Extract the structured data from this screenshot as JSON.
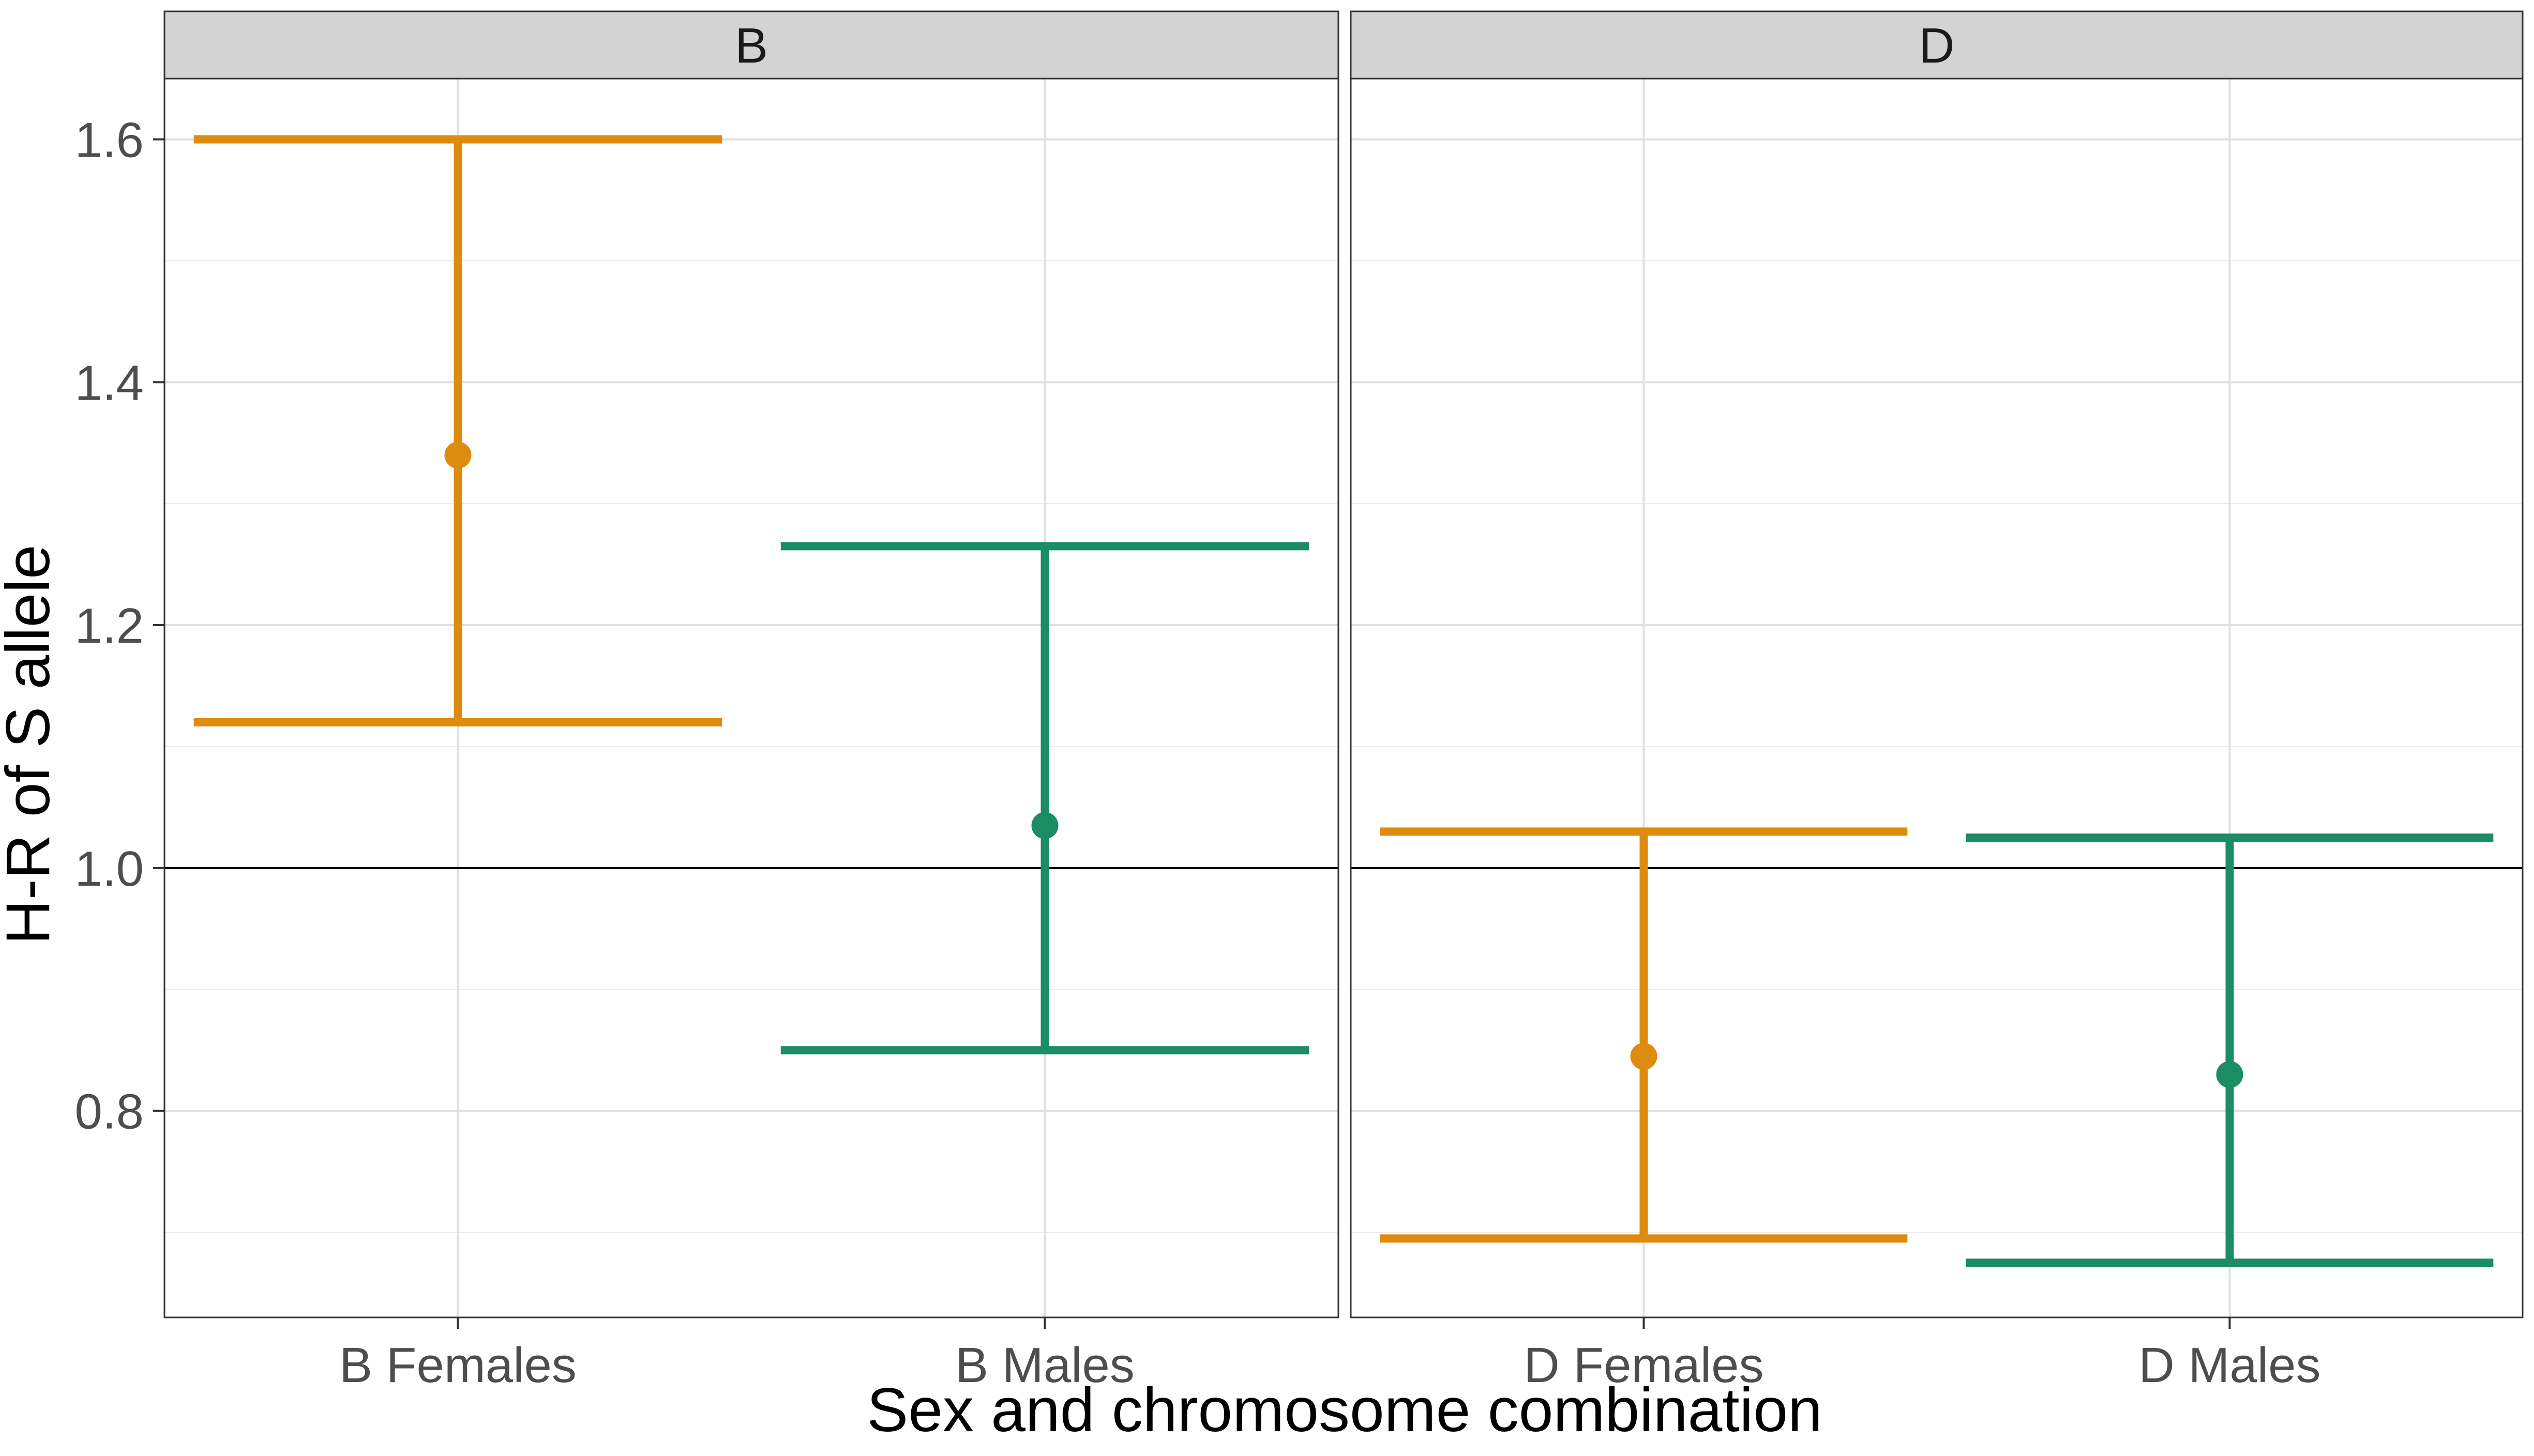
{
  "chart_data": {
    "type": "errorbar",
    "ylabel": "H-R of S allele",
    "xlabel": "Sex and chromosome combination",
    "ylim": [
      0.63,
      1.65
    ],
    "yticks": [
      "0.8",
      "1.0",
      "1.2",
      "1.4",
      "1.6"
    ],
    "reference_line": 1.0,
    "grid": true,
    "legend": "none",
    "colors": {
      "Females": "#DE8C0F",
      "Males": "#1B8C64"
    },
    "panels": [
      {
        "strip_label": "B",
        "categories": [
          "B Females",
          "B Males"
        ],
        "points": [
          {
            "category": "B Females",
            "group": "Females",
            "estimate": 1.34,
            "lower": 1.12,
            "upper": 1.6
          },
          {
            "category": "B Males",
            "group": "Males",
            "estimate": 1.035,
            "lower": 0.85,
            "upper": 1.265
          }
        ]
      },
      {
        "strip_label": "D",
        "categories": [
          "D Females",
          "D Males"
        ],
        "points": [
          {
            "category": "D Females",
            "group": "Females",
            "estimate": 0.845,
            "lower": 0.695,
            "upper": 1.03
          },
          {
            "category": "D Males",
            "group": "Males",
            "estimate": 0.83,
            "lower": 0.675,
            "upper": 1.025
          }
        ]
      }
    ]
  }
}
